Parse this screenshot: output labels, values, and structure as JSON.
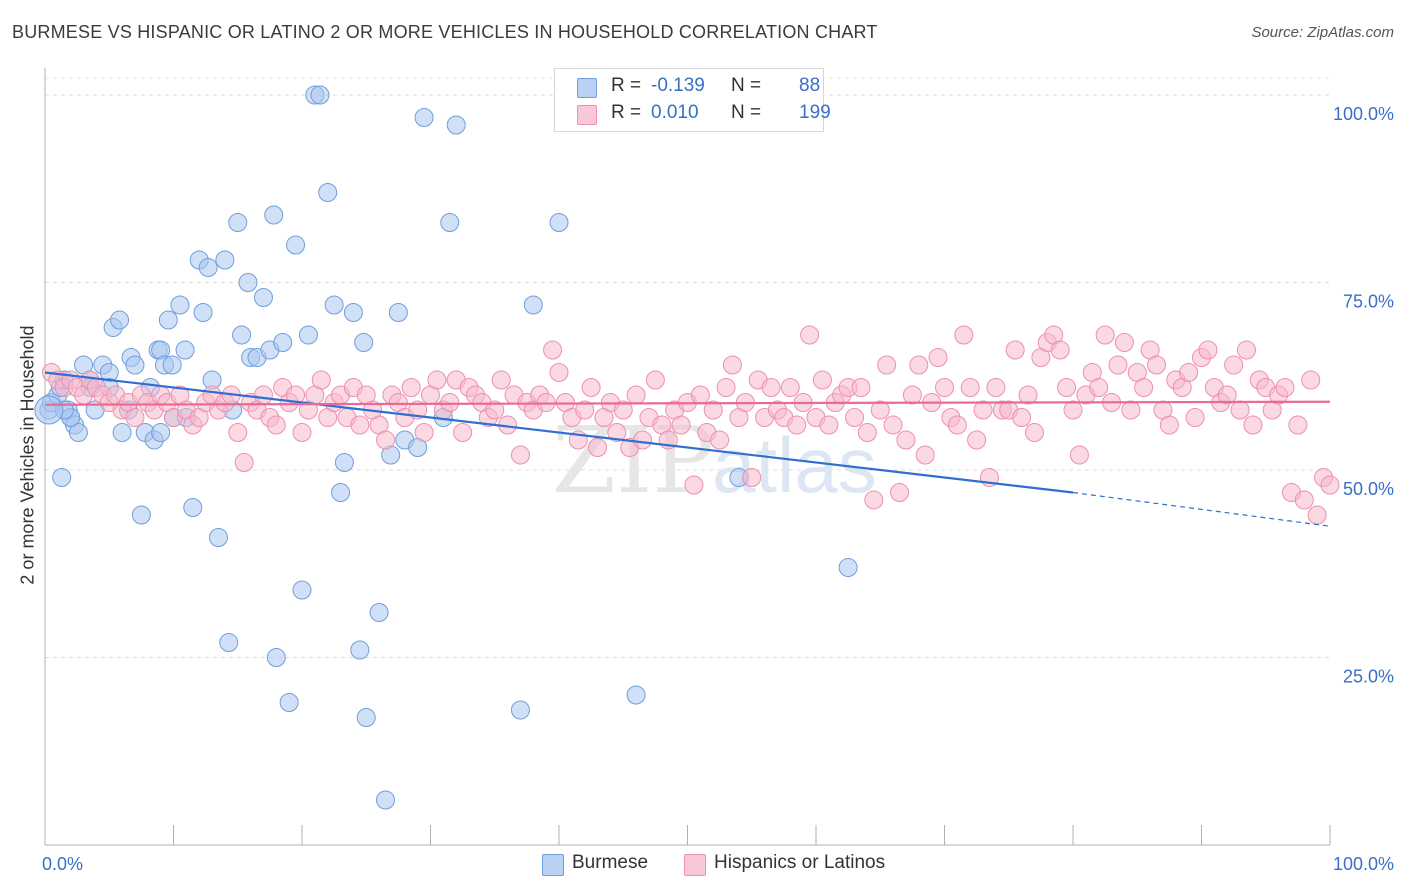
{
  "title": "BURMESE VS HISPANIC OR LATINO 2 OR MORE VEHICLES IN HOUSEHOLD CORRELATION CHART",
  "source": "Source: ZipAtlas.com",
  "watermark": "ZIPatlas",
  "legend": {
    "rows": [
      {
        "r_label": "R =",
        "r_value": "-0.139",
        "n_label": "N =",
        "n_value": "88",
        "color": "#a9c7f0"
      },
      {
        "r_label": "R =",
        "r_value": "0.010",
        "n_label": "N =",
        "n_value": "199",
        "color": "#f6b9cc"
      }
    ]
  },
  "bottom_legend": [
    {
      "label": "Burmese",
      "color": "#a9c7f0"
    },
    {
      "label": "Hispanics or Latinos",
      "color": "#f6b9cc"
    }
  ],
  "chart_data": {
    "type": "scatter",
    "title": "BURMESE VS HISPANIC OR LATINO 2 OR MORE VEHICLES IN HOUSEHOLD CORRELATION CHART",
    "xlabel": "",
    "ylabel": "2 or more Vehicles in Household",
    "xlim": [
      0,
      100
    ],
    "ylim": [
      0,
      102
    ],
    "x_tick_labels": [
      "0.0%",
      "100.0%"
    ],
    "y_tick_labels": [
      "25.0%",
      "50.0%",
      "75.0%",
      "100.0%"
    ],
    "y_ticks": [
      25,
      50,
      75,
      100
    ],
    "grid": true,
    "series": [
      {
        "name": "Burmese",
        "color": "#a9c7f0",
        "edge": "#6f9fdc",
        "trend": {
          "color": "#2f6fd0",
          "x": [
            0,
            80,
            100
          ],
          "y": [
            63,
            47,
            42.5
          ],
          "dashed_from_x": 80
        },
        "points": [
          [
            0.3,
            58
          ],
          [
            0.5,
            59
          ],
          [
            1,
            60
          ],
          [
            1.2,
            61
          ],
          [
            1.3,
            49
          ],
          [
            1.5,
            62
          ],
          [
            1.8,
            58
          ],
          [
            2,
            57
          ],
          [
            2.3,
            56
          ],
          [
            2.6,
            55
          ],
          [
            3,
            64
          ],
          [
            3.5,
            62
          ],
          [
            3.9,
            58
          ],
          [
            4.5,
            64
          ],
          [
            5,
            63
          ],
          [
            5.3,
            69
          ],
          [
            5.8,
            70
          ],
          [
            6,
            55
          ],
          [
            6.5,
            58
          ],
          [
            6.7,
            65
          ],
          [
            7,
            64
          ],
          [
            7.5,
            44
          ],
          [
            7.8,
            55
          ],
          [
            8.2,
            61
          ],
          [
            8.5,
            54
          ],
          [
            8.8,
            66
          ],
          [
            9,
            66
          ],
          [
            9.3,
            64
          ],
          [
            9.6,
            70
          ],
          [
            9.9,
            64
          ],
          [
            10,
            57
          ],
          [
            10.5,
            72
          ],
          [
            10.9,
            66
          ],
          [
            11,
            57
          ],
          [
            11.5,
            45
          ],
          [
            12,
            78
          ],
          [
            12.3,
            71
          ],
          [
            12.7,
            77
          ],
          [
            13,
            62
          ],
          [
            13.5,
            41
          ],
          [
            14,
            78
          ],
          [
            14.3,
            27
          ],
          [
            14.6,
            58
          ],
          [
            15,
            83
          ],
          [
            15.3,
            68
          ],
          [
            15.8,
            75
          ],
          [
            16,
            65
          ],
          [
            16.5,
            65
          ],
          [
            17,
            73
          ],
          [
            17.5,
            66
          ],
          [
            17.8,
            84
          ],
          [
            18,
            25
          ],
          [
            18.5,
            67
          ],
          [
            19,
            19
          ],
          [
            19.5,
            80
          ],
          [
            20,
            34
          ],
          [
            20.5,
            68
          ],
          [
            21,
            100
          ],
          [
            21.4,
            100
          ],
          [
            22,
            87
          ],
          [
            22.5,
            72
          ],
          [
            23,
            47
          ],
          [
            23.3,
            51
          ],
          [
            24,
            71
          ],
          [
            24.5,
            26
          ],
          [
            24.8,
            67
          ],
          [
            25,
            17
          ],
          [
            26,
            31
          ],
          [
            26.5,
            6
          ],
          [
            26.9,
            52
          ],
          [
            27.5,
            71
          ],
          [
            28,
            54
          ],
          [
            29,
            53
          ],
          [
            29.5,
            97
          ],
          [
            31,
            57
          ],
          [
            31.5,
            83
          ],
          [
            32,
            96
          ],
          [
            37,
            18
          ],
          [
            38,
            72
          ],
          [
            40,
            83
          ],
          [
            46,
            20
          ],
          [
            54,
            49
          ],
          [
            62.5,
            37
          ],
          [
            2,
            57
          ],
          [
            1.5,
            58
          ],
          [
            3.5,
            61
          ],
          [
            5,
            61
          ],
          [
            9,
            55
          ]
        ]
      },
      {
        "name": "Hispanics or Latinos",
        "color": "#f6b9cc",
        "edge": "#ee8fae",
        "trend": {
          "color": "#ea6a95",
          "x": [
            0,
            100
          ],
          "y": [
            58.7,
            59.1
          ]
        },
        "points": [
          [
            0.5,
            63
          ],
          [
            1,
            62
          ],
          [
            1.5,
            61
          ],
          [
            2,
            62
          ],
          [
            2.5,
            61
          ],
          [
            3,
            60
          ],
          [
            3.5,
            62
          ],
          [
            4,
            61
          ],
          [
            4.5,
            60
          ],
          [
            5,
            59
          ],
          [
            5.5,
            60
          ],
          [
            6,
            58
          ],
          [
            6.5,
            59
          ],
          [
            7,
            57
          ],
          [
            7.5,
            60
          ],
          [
            8,
            59
          ],
          [
            8.5,
            58
          ],
          [
            9,
            60
          ],
          [
            9.5,
            59
          ],
          [
            10,
            57
          ],
          [
            10.5,
            60
          ],
          [
            11,
            58
          ],
          [
            11.5,
            56
          ],
          [
            12,
            57
          ],
          [
            12.5,
            59
          ],
          [
            13,
            60
          ],
          [
            13.5,
            58
          ],
          [
            14,
            59
          ],
          [
            14.5,
            60
          ],
          [
            15,
            55
          ],
          [
            15.5,
            51
          ],
          [
            16,
            59
          ],
          [
            16.5,
            58
          ],
          [
            17,
            60
          ],
          [
            17.5,
            57
          ],
          [
            18,
            56
          ],
          [
            18.5,
            61
          ],
          [
            19,
            59
          ],
          [
            19.5,
            60
          ],
          [
            20,
            55
          ],
          [
            20.5,
            58
          ],
          [
            21,
            60
          ],
          [
            21.5,
            62
          ],
          [
            22,
            57
          ],
          [
            22.5,
            59
          ],
          [
            23,
            60
          ],
          [
            23.5,
            57
          ],
          [
            24,
            61
          ],
          [
            24.5,
            56
          ],
          [
            25,
            60
          ],
          [
            25.5,
            58
          ],
          [
            26,
            56
          ],
          [
            26.5,
            54
          ],
          [
            27,
            60
          ],
          [
            27.5,
            59
          ],
          [
            28,
            57
          ],
          [
            28.5,
            61
          ],
          [
            29,
            58
          ],
          [
            29.5,
            55
          ],
          [
            30,
            60
          ],
          [
            30.5,
            62
          ],
          [
            31,
            58
          ],
          [
            31.5,
            59
          ],
          [
            32,
            62
          ],
          [
            32.5,
            55
          ],
          [
            33,
            61
          ],
          [
            33.5,
            60
          ],
          [
            34,
            59
          ],
          [
            34.5,
            57
          ],
          [
            35,
            58
          ],
          [
            35.5,
            62
          ],
          [
            36,
            56
          ],
          [
            36.5,
            60
          ],
          [
            37,
            52
          ],
          [
            37.5,
            59
          ],
          [
            38,
            58
          ],
          [
            38.5,
            60
          ],
          [
            39,
            59
          ],
          [
            39.5,
            66
          ],
          [
            40,
            63
          ],
          [
            40.5,
            59
          ],
          [
            41,
            57
          ],
          [
            41.5,
            54
          ],
          [
            42,
            58
          ],
          [
            42.5,
            61
          ],
          [
            43,
            53
          ],
          [
            43.5,
            57
          ],
          [
            44,
            59
          ],
          [
            44.5,
            55
          ],
          [
            45,
            58
          ],
          [
            45.5,
            53
          ],
          [
            46,
            60
          ],
          [
            46.5,
            54
          ],
          [
            47,
            57
          ],
          [
            47.5,
            62
          ],
          [
            48,
            56
          ],
          [
            48.5,
            54
          ],
          [
            49,
            58
          ],
          [
            49.5,
            56
          ],
          [
            50,
            59
          ],
          [
            50.5,
            48
          ],
          [
            51,
            60
          ],
          [
            51.5,
            55
          ],
          [
            52,
            58
          ],
          [
            52.5,
            54
          ],
          [
            53,
            61
          ],
          [
            53.5,
            64
          ],
          [
            54,
            57
          ],
          [
            54.5,
            59
          ],
          [
            55,
            49
          ],
          [
            55.5,
            62
          ],
          [
            56,
            57
          ],
          [
            56.5,
            61
          ],
          [
            57,
            58
          ],
          [
            57.5,
            57
          ],
          [
            58,
            61
          ],
          [
            58.5,
            56
          ],
          [
            59,
            59
          ],
          [
            59.5,
            68
          ],
          [
            60,
            57
          ],
          [
            60.5,
            62
          ],
          [
            61,
            56
          ],
          [
            61.5,
            59
          ],
          [
            62,
            60
          ],
          [
            62.5,
            61
          ],
          [
            63,
            57
          ],
          [
            63.5,
            61
          ],
          [
            64,
            55
          ],
          [
            64.5,
            46
          ],
          [
            65,
            58
          ],
          [
            65.5,
            64
          ],
          [
            66,
            56
          ],
          [
            66.5,
            47
          ],
          [
            67,
            54
          ],
          [
            67.5,
            60
          ],
          [
            68,
            64
          ],
          [
            68.5,
            52
          ],
          [
            69,
            59
          ],
          [
            69.5,
            65
          ],
          [
            70,
            61
          ],
          [
            70.5,
            57
          ],
          [
            71,
            56
          ],
          [
            71.5,
            68
          ],
          [
            72,
            61
          ],
          [
            72.5,
            54
          ],
          [
            73,
            58
          ],
          [
            73.5,
            49
          ],
          [
            74,
            61
          ],
          [
            74.5,
            58
          ],
          [
            75,
            58
          ],
          [
            75.5,
            66
          ],
          [
            76,
            57
          ],
          [
            76.5,
            60
          ],
          [
            77,
            55
          ],
          [
            77.5,
            65
          ],
          [
            78,
            67
          ],
          [
            78.5,
            68
          ],
          [
            79,
            66
          ],
          [
            79.5,
            61
          ],
          [
            80,
            58
          ],
          [
            80.5,
            52
          ],
          [
            81,
            60
          ],
          [
            81.5,
            63
          ],
          [
            82,
            61
          ],
          [
            82.5,
            68
          ],
          [
            83,
            59
          ],
          [
            83.5,
            64
          ],
          [
            84,
            67
          ],
          [
            84.5,
            58
          ],
          [
            85,
            63
          ],
          [
            85.5,
            61
          ],
          [
            86,
            66
          ],
          [
            86.5,
            64
          ],
          [
            87,
            58
          ],
          [
            87.5,
            56
          ],
          [
            88,
            62
          ],
          [
            88.5,
            61
          ],
          [
            89,
            63
          ],
          [
            89.5,
            57
          ],
          [
            90,
            65
          ],
          [
            90.5,
            66
          ],
          [
            91,
            61
          ],
          [
            91.5,
            59
          ],
          [
            92,
            60
          ],
          [
            92.5,
            64
          ],
          [
            93,
            58
          ],
          [
            93.5,
            66
          ],
          [
            94,
            56
          ],
          [
            94.5,
            62
          ],
          [
            95,
            61
          ],
          [
            95.5,
            58
          ],
          [
            96,
            60
          ],
          [
            96.5,
            61
          ],
          [
            97,
            47
          ],
          [
            97.5,
            56
          ],
          [
            98,
            46
          ],
          [
            98.5,
            62
          ],
          [
            99,
            44
          ],
          [
            99.5,
            49
          ],
          [
            100,
            48
          ]
        ]
      }
    ]
  }
}
